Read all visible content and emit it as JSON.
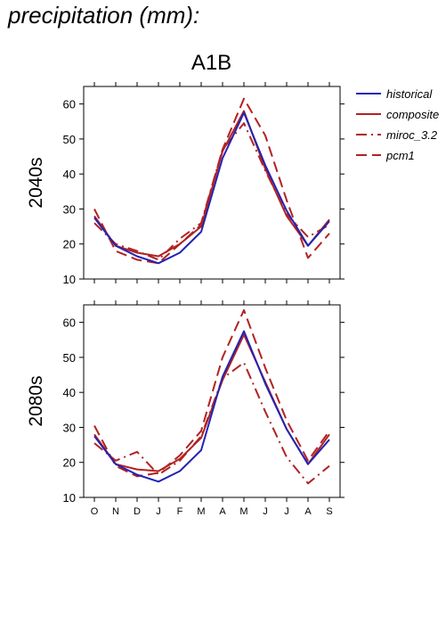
{
  "page_title": "precipitation (mm):",
  "chart_data": {
    "type": "line",
    "title": "A1B",
    "categories": [
      "O",
      "N",
      "D",
      "J",
      "F",
      "M",
      "A",
      "M",
      "J",
      "J",
      "A",
      "S"
    ],
    "ylim": [
      10,
      65
    ],
    "yticks": [
      10,
      20,
      30,
      40,
      50,
      60
    ],
    "grid": false,
    "legend_position": "top-right",
    "legend": [
      {
        "name": "historical",
        "color": "#2323b4",
        "dash": "solid"
      },
      {
        "name": "composite",
        "color": "#b22222",
        "dash": "solid"
      },
      {
        "name": "miroc_3.2",
        "color": "#b22222",
        "dash": "dashdot"
      },
      {
        "name": "pcm1",
        "color": "#b22222",
        "dash": "dashed"
      }
    ],
    "panels": [
      {
        "label": "2040s",
        "series": [
          {
            "name": "historical",
            "values": [
              27.5,
              19.5,
              16.5,
              14.5,
              17.5,
              23.5,
              44.5,
              57.5,
              42.5,
              29.5,
              19.5,
              26.5
            ]
          },
          {
            "name": "composite",
            "values": [
              28,
              19.5,
              17.5,
              16.5,
              20,
              25,
              46.5,
              58,
              41.5,
              28,
              19.5,
              27
            ]
          },
          {
            "name": "miroc_3.2",
            "values": [
              26,
              20,
              18,
              15.5,
              21.5,
              26,
              47,
              54.5,
              41,
              28.5,
              22,
              25.5
            ]
          },
          {
            "name": "pcm1",
            "values": [
              30,
              18,
              15.5,
              14.5,
              20,
              25.5,
              47,
              61.5,
              51,
              32.5,
              16,
              23
            ]
          }
        ]
      },
      {
        "label": "2080s",
        "series": [
          {
            "name": "historical",
            "values": [
              27.5,
              19.5,
              16.5,
              14.5,
              17.5,
              23.5,
              44.5,
              57.5,
              42.5,
              29.5,
              19.5,
              26.5
            ]
          },
          {
            "name": "composite",
            "values": [
              28,
              19.5,
              18,
              17.5,
              21,
              27,
              43.5,
              56.5,
              43,
              29.5,
              19.5,
              28
            ]
          },
          {
            "name": "miroc_3.2",
            "values": [
              25.5,
              20.5,
              23,
              16.5,
              20.5,
              27.5,
              44,
              48.5,
              34.5,
              21.5,
              14,
              19
            ]
          },
          {
            "name": "pcm1",
            "values": [
              30.5,
              19,
              16,
              17,
              22,
              29,
              50,
              63.5,
              47,
              32,
              20.5,
              29
            ]
          }
        ]
      }
    ]
  }
}
